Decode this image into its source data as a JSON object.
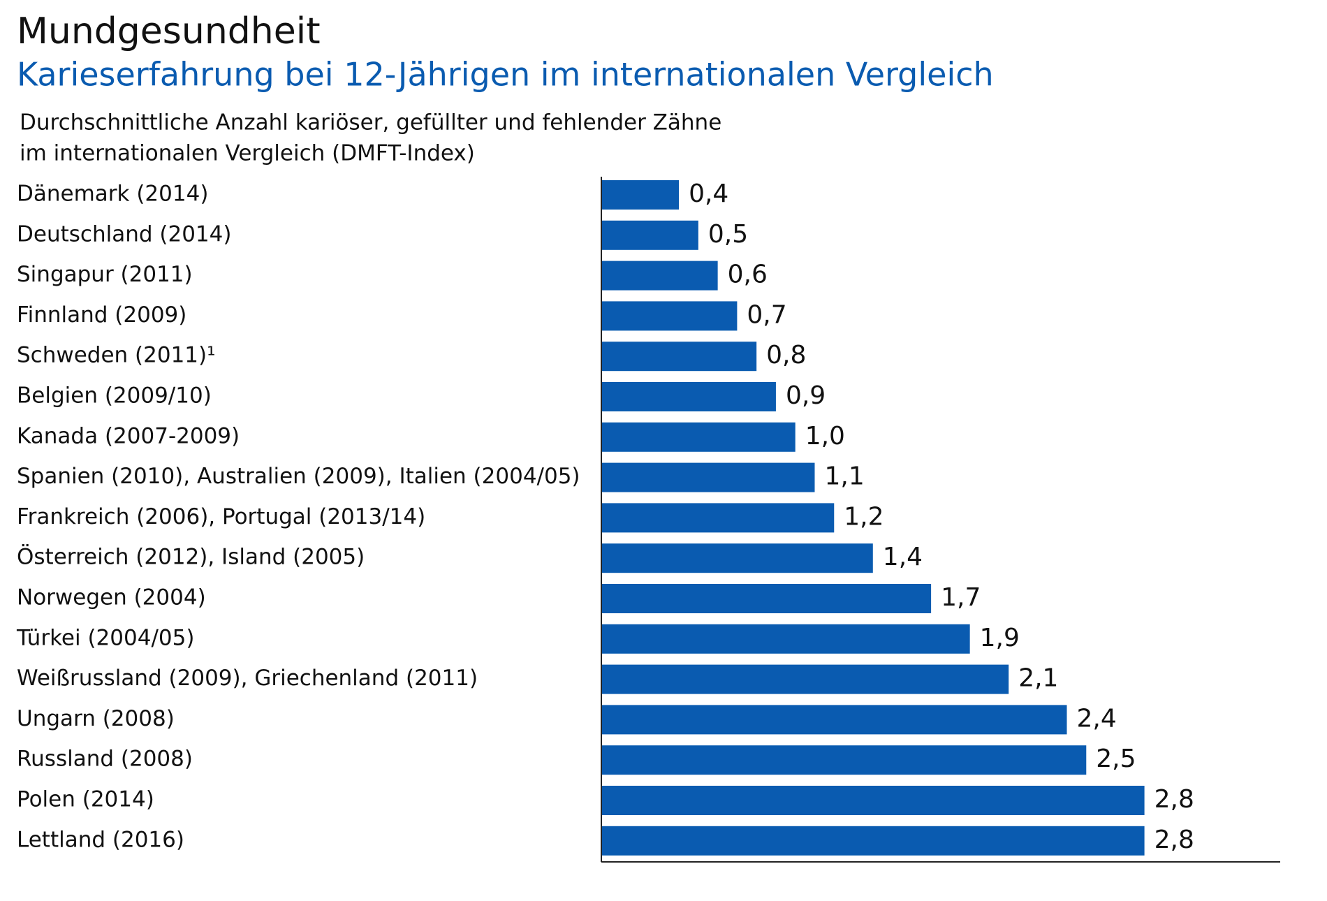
{
  "chart_data": {
    "type": "bar",
    "orientation": "horizontal",
    "title": "Mundgesundheit",
    "subtitle": "Karieserfahrung bei 12-Jährigen im internationalen Vergleich",
    "description": [
      "Durchschnittliche Anzahl kariöser, gefüllter und fehlender Zähne",
      "im internationalen Vergleich (DMFT-Index)"
    ],
    "categories": [
      "Dänemark (2014)",
      "Deutschland (2014)",
      "Singapur (2011)",
      "Finnland (2009)",
      "Schweden (2011)¹",
      "Belgien (2009/10)",
      "Kanada (2007-2009)",
      "Spanien (2010), Australien (2009), Italien (2004/05)",
      "Frankreich (2006), Portugal (2013/14)",
      "Österreich (2012), Island (2005)",
      "Norwegen (2004)",
      "Türkei (2004/05)",
      "Weißrussland (2009), Griechenland (2011)",
      "Ungarn (2008)",
      "Russland (2008)",
      "Polen (2014)",
      "Lettland (2016)"
    ],
    "values": [
      0.4,
      0.5,
      0.6,
      0.7,
      0.8,
      0.9,
      1.0,
      1.1,
      1.2,
      1.4,
      1.7,
      1.9,
      2.1,
      2.4,
      2.5,
      2.8,
      2.8
    ],
    "value_labels": [
      "0,4",
      "0,5",
      "0,6",
      "0,7",
      "0,8",
      "0,9",
      "1,0",
      "1,1",
      "1,2",
      "1,4",
      "1,7",
      "1,9",
      "2,1",
      "2,4",
      "2,5",
      "2,8",
      "2,8"
    ],
    "color": "#0a5bb0",
    "xlim": [
      0,
      3.5
    ]
  }
}
